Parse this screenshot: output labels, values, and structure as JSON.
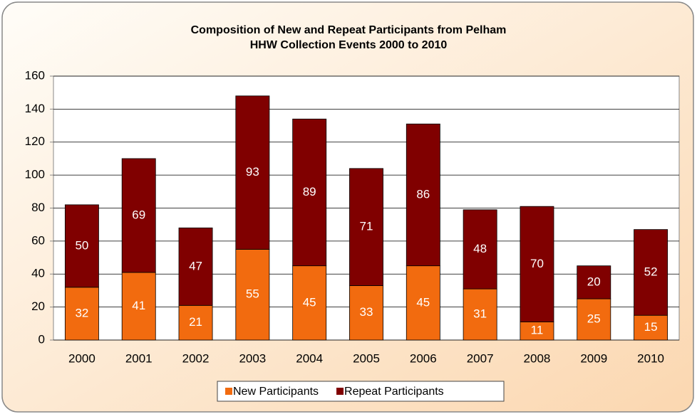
{
  "chart_data": {
    "type": "stacked_bar",
    "title": "Composition of New and Repeat Participants from Pelham",
    "subtitle": "HHW Collection Events 2000 to 2010",
    "categories": [
      "2000",
      "2001",
      "2002",
      "2003",
      "2004",
      "2005",
      "2006",
      "2007",
      "2008",
      "2009",
      "2010"
    ],
    "series": [
      {
        "name": "New Participants",
        "color": "#f26b0f",
        "values": [
          32,
          41,
          21,
          55,
          45,
          33,
          45,
          31,
          11,
          25,
          15
        ]
      },
      {
        "name": "Repeat Participants",
        "color": "#800000",
        "values": [
          50,
          69,
          47,
          93,
          89,
          71,
          86,
          48,
          70,
          20,
          52
        ]
      }
    ],
    "ylim": [
      0,
      160
    ],
    "yticks": [
      0,
      20,
      40,
      60,
      80,
      100,
      120,
      140,
      160
    ],
    "grid": true,
    "legend": "bottom"
  }
}
